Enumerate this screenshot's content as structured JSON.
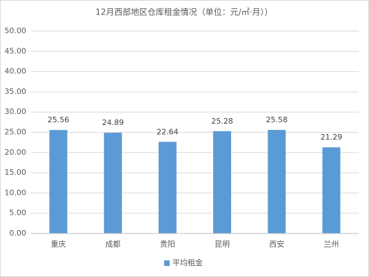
{
  "chart_data": {
    "type": "bar",
    "title": "12月西部地区仓库租金情况（单位：元/㎡·月））",
    "categories": [
      "重庆",
      "成都",
      "贵阳",
      "昆明",
      "西安",
      "兰州"
    ],
    "series": [
      {
        "name": "平均租金",
        "color": "#5b9bd5",
        "values": [
          25.56,
          24.89,
          22.64,
          25.28,
          25.58,
          21.29
        ]
      }
    ],
    "ylim": [
      0,
      50
    ],
    "yticks": [
      {
        "value": 0,
        "label": "0.00"
      },
      {
        "value": 5,
        "label": "5.00"
      },
      {
        "value": 10,
        "label": "10.00"
      },
      {
        "value": 15,
        "label": "15.00"
      },
      {
        "value": 20,
        "label": "20.00"
      },
      {
        "value": 25,
        "label": "25.00"
      },
      {
        "value": 30,
        "label": "30.00"
      },
      {
        "value": 35,
        "label": "35.00"
      },
      {
        "value": 40,
        "label": "40.00"
      },
      {
        "value": 45,
        "label": "45.00"
      },
      {
        "value": 50,
        "label": "50.00"
      }
    ],
    "grid": true,
    "legend": "bottom"
  }
}
